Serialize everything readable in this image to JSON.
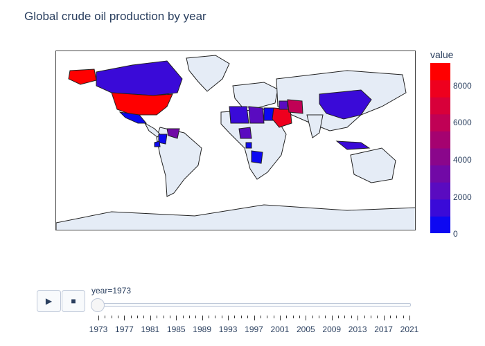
{
  "title": "Global crude oil production by year",
  "colorbar": {
    "title": "value",
    "ticks": [
      "0",
      "2000",
      "4000",
      "6000",
      "8000"
    ],
    "min": 0,
    "max": 9200,
    "colors": [
      "#0d08f2",
      "#3a0ad8",
      "#5a0bc0",
      "#7109a6",
      "#8a068b",
      "#a50270",
      "#c00155",
      "#d8003a",
      "#ee001e",
      "#ff0000"
    ]
  },
  "controls": {
    "play_icon": "▶",
    "stop_icon": "■"
  },
  "slider": {
    "label": "year=1973",
    "value": 1973,
    "years": [
      1973,
      1977,
      1981,
      1985,
      1989,
      1993,
      1997,
      2001,
      2005,
      2009,
      2013,
      2017,
      2021
    ]
  },
  "map": {
    "land_color": "#e5ecf6",
    "regions": [
      {
        "name": "United States",
        "value": 9200
      },
      {
        "name": "Canada",
        "value": 1800
      },
      {
        "name": "Alaska",
        "value": 9200
      },
      {
        "name": "Mexico",
        "value": 450
      },
      {
        "name": "Venezuela",
        "value": 3400
      },
      {
        "name": "Colombia",
        "value": 200
      },
      {
        "name": "Ecuador",
        "value": 200
      },
      {
        "name": "Algeria",
        "value": 1000
      },
      {
        "name": "Libya",
        "value": 2200
      },
      {
        "name": "Egypt",
        "value": 200
      },
      {
        "name": "Nigeria",
        "value": 2000
      },
      {
        "name": "Gabon",
        "value": 150
      },
      {
        "name": "Angola",
        "value": 160
      },
      {
        "name": "Saudi Arabia",
        "value": 7600
      },
      {
        "name": "Iran",
        "value": 5900
      },
      {
        "name": "Iraq",
        "value": 2000
      },
      {
        "name": "Russia",
        "value": 0
      },
      {
        "name": "China",
        "value": 1000
      },
      {
        "name": "Indonesia",
        "value": 1300
      }
    ]
  }
}
